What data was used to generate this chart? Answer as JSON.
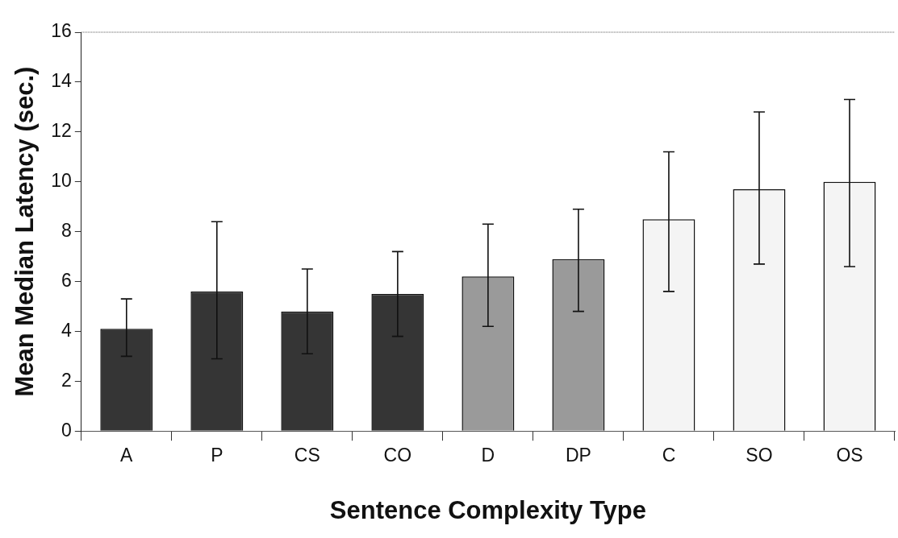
{
  "chart_data": {
    "type": "bar",
    "xlabel": "Sentence Complexity Type",
    "ylabel": "Mean Median Latency (sec.)",
    "categories": [
      "A",
      "P",
      "CS",
      "CO",
      "D",
      "DP",
      "C",
      "SO",
      "OS"
    ],
    "values": [
      4.1,
      5.6,
      4.8,
      5.5,
      6.2,
      6.9,
      8.5,
      9.7,
      10.0
    ],
    "colors": [
      "#353535",
      "#353535",
      "#353535",
      "#353535",
      "#9a9a9a",
      "#9a9a9a",
      "#f4f4f4",
      "#f4f4f4",
      "#f4f4f4"
    ],
    "errors": [
      [
        3.0,
        5.3
      ],
      [
        2.9,
        8.4
      ],
      [
        3.1,
        6.5
      ],
      [
        3.8,
        7.2
      ],
      [
        4.2,
        8.3
      ],
      [
        4.8,
        8.9
      ],
      [
        5.6,
        11.2
      ],
      [
        6.7,
        12.8
      ],
      [
        6.6,
        13.3
      ]
    ],
    "ylim": [
      0,
      16
    ],
    "yticks": [
      0,
      2,
      4,
      6,
      8,
      10,
      12,
      14,
      16
    ],
    "grid": false,
    "legend": false
  }
}
